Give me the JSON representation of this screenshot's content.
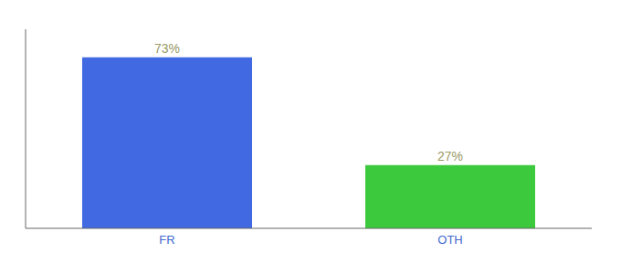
{
  "chart_data": {
    "type": "bar",
    "categories": [
      "FR",
      "OTH"
    ],
    "values": [
      73,
      27
    ],
    "colors": [
      "#4169e1",
      "#3dc93d"
    ],
    "value_labels": [
      "73%",
      "27%"
    ],
    "data_labels": true,
    "ylim": [
      0,
      85
    ],
    "tick_labels": "x",
    "grid": false
  }
}
